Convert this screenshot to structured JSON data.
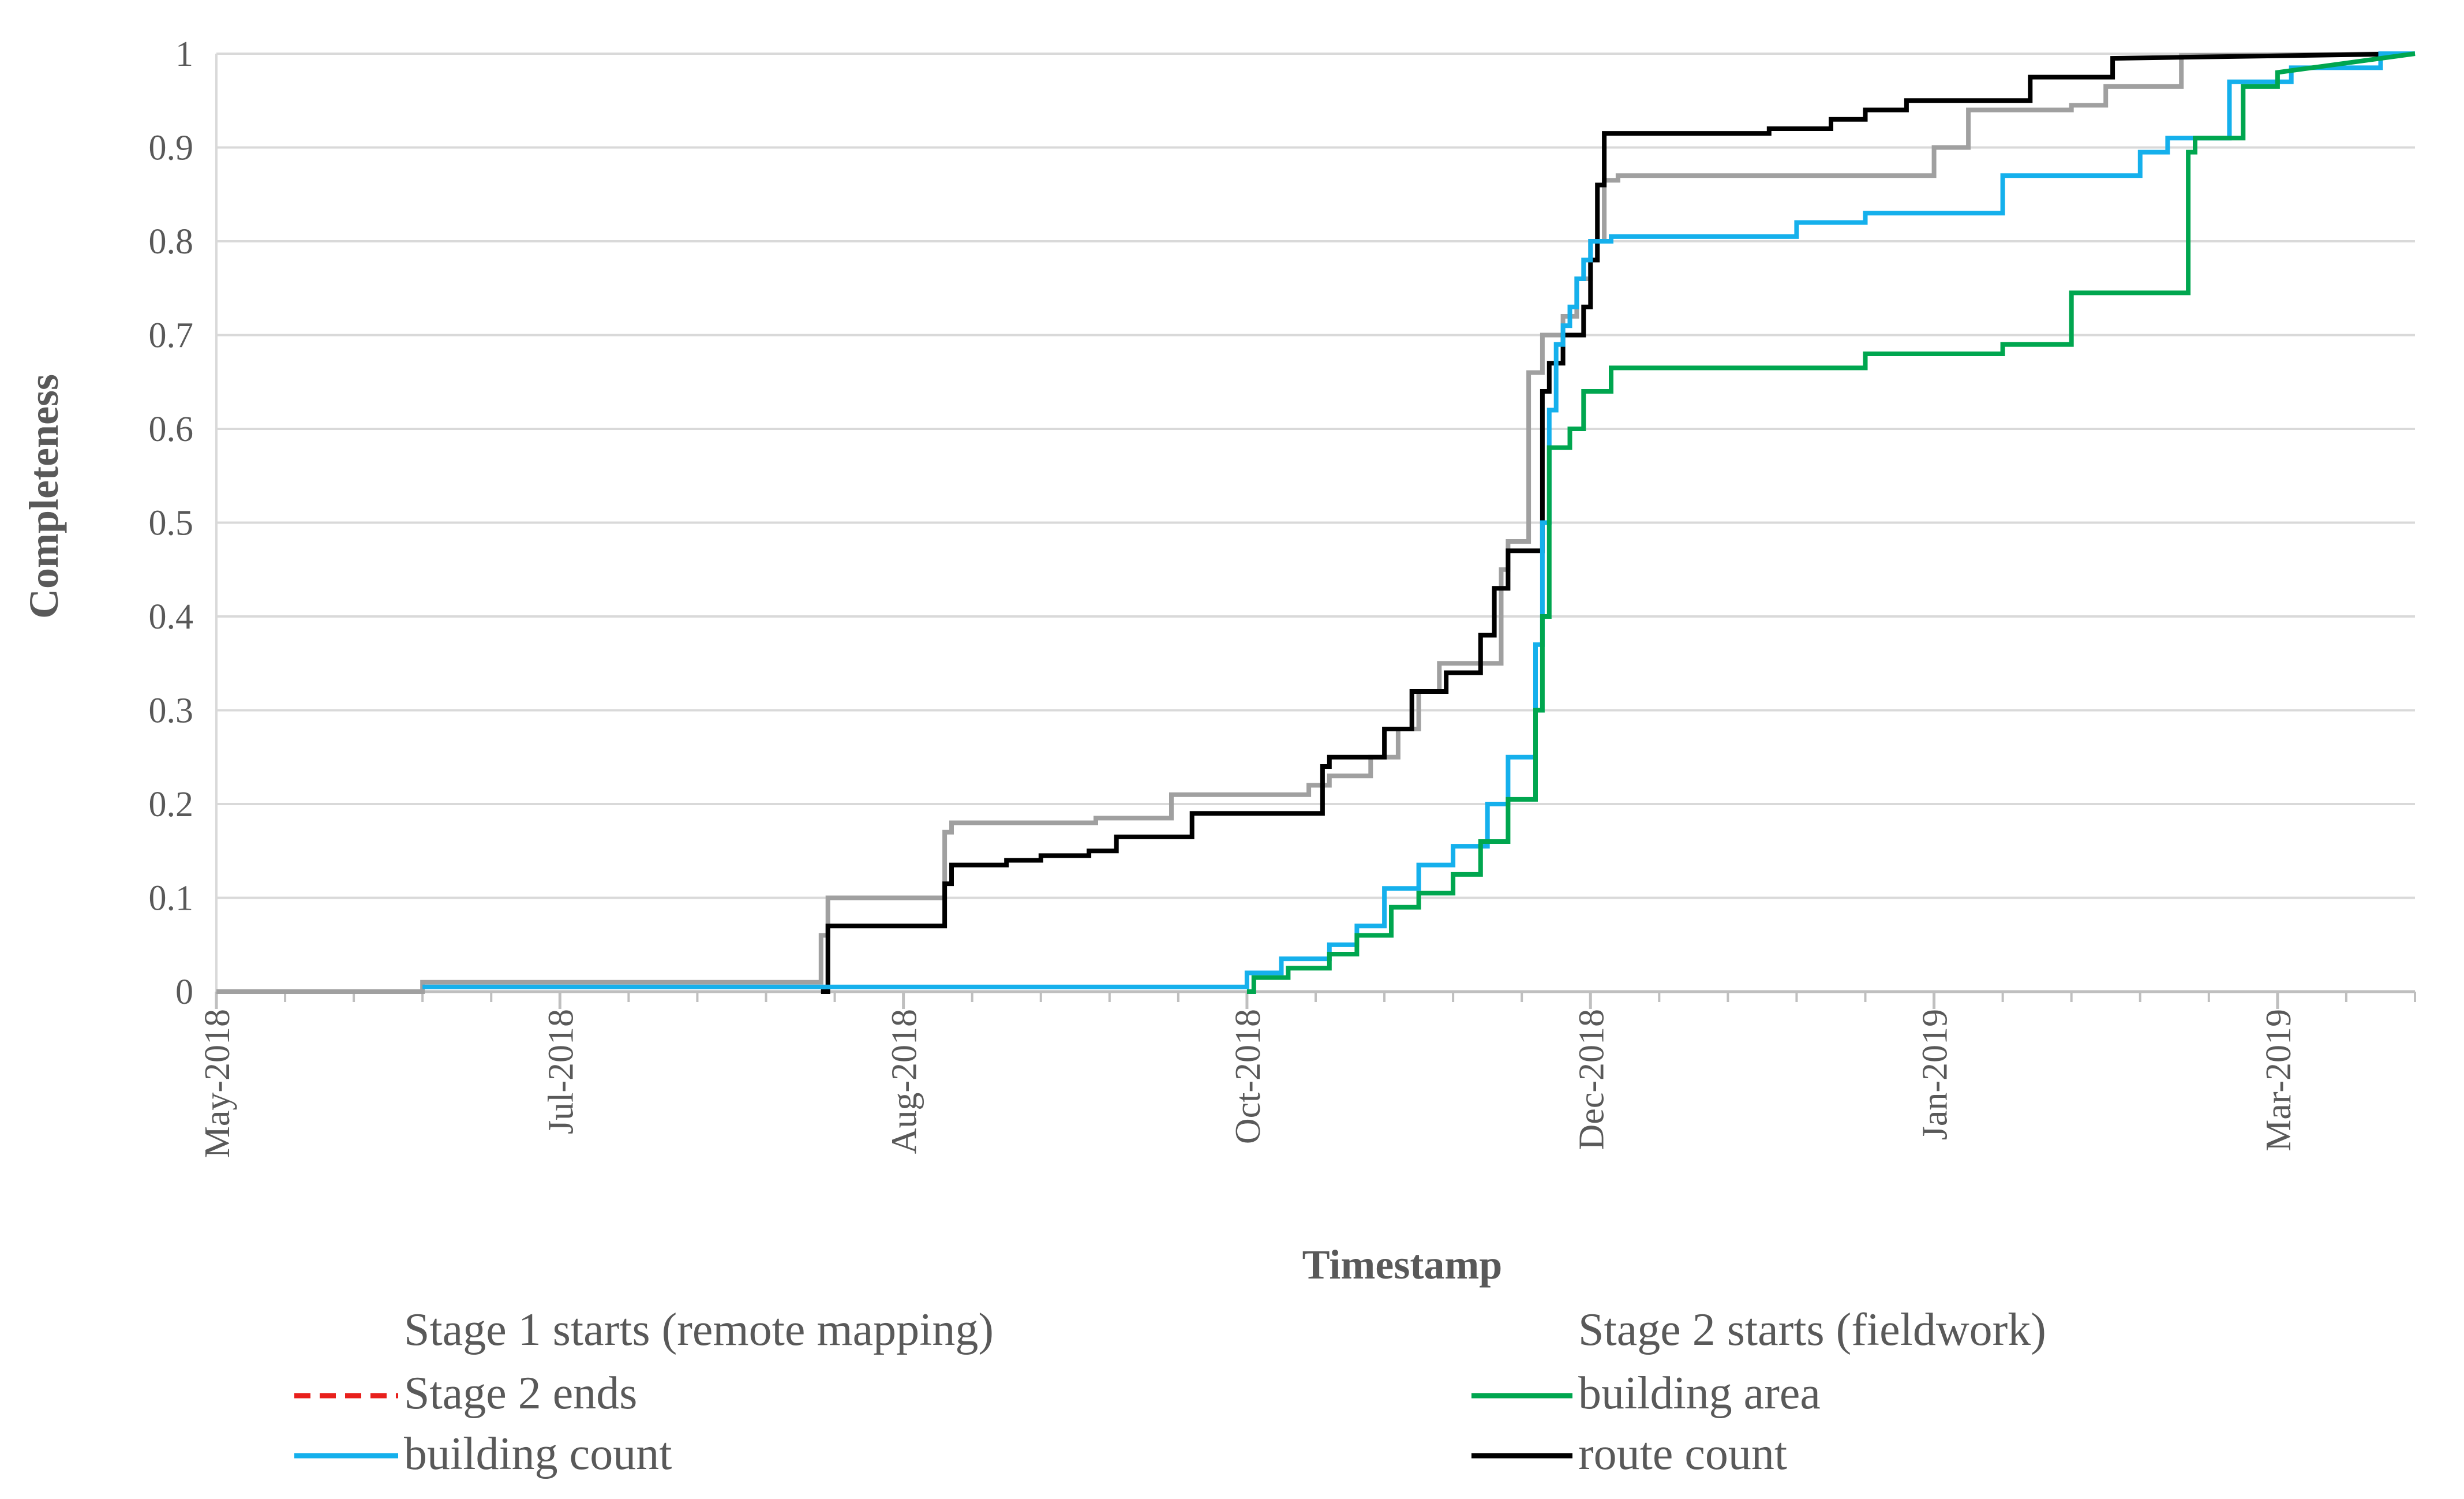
{
  "chart_data": {
    "type": "line",
    "title": "",
    "xlabel": "Timestamp",
    "ylabel": "Completeness",
    "ylim": [
      0,
      1
    ],
    "yticks": [
      "0",
      "0.1",
      "0.2",
      "0.3",
      "0.4",
      "0.5",
      "0.6",
      "0.7",
      "0.8",
      "0.9",
      "1"
    ],
    "x_tick_labels": [
      "May-2018",
      "Jul-2018",
      "Aug-2018",
      "Oct-2018",
      "Dec-2018",
      "Jan-2019",
      "Mar-2019"
    ],
    "x_unit": "days since 1 May 2018",
    "xlim": [
      0,
      320
    ],
    "x_label_days": [
      0,
      50,
      100,
      150,
      200,
      250,
      300
    ],
    "x_minor_days": [
      10,
      20,
      30,
      40,
      60,
      70,
      80,
      90,
      110,
      120,
      130,
      140,
      160,
      170,
      180,
      190,
      210,
      220,
      230,
      240,
      260,
      270,
      280,
      290,
      310,
      320
    ],
    "grid": true,
    "legend_position": "bottom",
    "legend": [
      {
        "label": "Stage 1 starts (remote mapping)",
        "color": "none",
        "style": "none"
      },
      {
        "label": "Stage 2 starts (fieldwork)",
        "color": "none",
        "style": "none"
      },
      {
        "label": "Stage 2 ends",
        "color": "#e8201c",
        "style": "dashed"
      },
      {
        "label": "building area",
        "color": "#00a64f",
        "style": "solid"
      },
      {
        "label": "building count",
        "color": "#15b0ec",
        "style": "solid"
      },
      {
        "label": "route count",
        "color": "#000000",
        "style": "solid"
      }
    ],
    "series": [
      {
        "name": "grey series (unlabeled)",
        "color": "#a0a0a0",
        "x": [
          0,
          30,
          30,
          88,
          88,
          89,
          89,
          106,
          106,
          107,
          107,
          128,
          128,
          139,
          139,
          159,
          159,
          162,
          162,
          168,
          168,
          172,
          172,
          175,
          175,
          178,
          178,
          187,
          187,
          188,
          188,
          191,
          191,
          193,
          193,
          196,
          196,
          198,
          198,
          200,
          200,
          202,
          202,
          204,
          204,
          250,
          250,
          255,
          255,
          270,
          270,
          275,
          275,
          286,
          286,
          320
        ],
        "y": [
          0,
          0,
          0.01,
          0.01,
          0.06,
          0.06,
          0.1,
          0.1,
          0.17,
          0.17,
          0.18,
          0.18,
          0.185,
          0.185,
          0.21,
          0.21,
          0.22,
          0.22,
          0.23,
          0.23,
          0.25,
          0.25,
          0.28,
          0.28,
          0.32,
          0.32,
          0.35,
          0.35,
          0.45,
          0.45,
          0.48,
          0.48,
          0.66,
          0.66,
          0.7,
          0.7,
          0.72,
          0.72,
          0.76,
          0.76,
          0.8,
          0.8,
          0.865,
          0.865,
          0.87,
          0.87,
          0.9,
          0.9,
          0.94,
          0.94,
          0.945,
          0.945,
          0.965,
          0.965,
          0.998,
          1
        ]
      },
      {
        "name": "route count",
        "color": "#000000",
        "x": [
          88,
          89,
          89,
          106,
          106,
          107,
          107,
          115,
          115,
          120,
          120,
          127,
          127,
          131,
          131,
          142,
          142,
          161,
          161,
          162,
          162,
          170,
          170,
          174,
          174,
          179,
          179,
          184,
          184,
          186,
          186,
          188,
          188,
          193,
          193,
          194,
          194,
          196,
          196,
          199,
          199,
          200,
          200,
          201,
          201,
          202,
          202,
          226,
          226,
          235,
          235,
          240,
          240,
          246,
          246,
          264,
          264,
          276,
          276,
          320
        ],
        "y": [
          0,
          0,
          0.07,
          0.07,
          0.115,
          0.115,
          0.135,
          0.135,
          0.14,
          0.14,
          0.145,
          0.145,
          0.15,
          0.15,
          0.165,
          0.165,
          0.19,
          0.19,
          0.24,
          0.24,
          0.25,
          0.25,
          0.28,
          0.28,
          0.32,
          0.32,
          0.34,
          0.34,
          0.38,
          0.38,
          0.43,
          0.43,
          0.47,
          0.47,
          0.64,
          0.64,
          0.67,
          0.67,
          0.7,
          0.7,
          0.73,
          0.73,
          0.78,
          0.78,
          0.86,
          0.86,
          0.915,
          0.915,
          0.92,
          0.92,
          0.93,
          0.93,
          0.94,
          0.94,
          0.95,
          0.95,
          0.975,
          0.975,
          0.995,
          1
        ]
      },
      {
        "name": "building count",
        "color": "#15b0ec",
        "x": [
          30,
          150,
          150,
          155,
          155,
          162,
          162,
          166,
          166,
          170,
          170,
          175,
          175,
          180,
          180,
          185,
          185,
          188,
          188,
          192,
          192,
          193,
          193,
          194,
          194,
          195,
          195,
          196,
          196,
          197,
          197,
          198,
          198,
          199,
          199,
          200,
          200,
          203,
          203,
          230,
          230,
          240,
          240,
          260,
          260,
          280,
          280,
          284,
          284,
          293,
          293,
          302,
          302,
          315,
          315,
          320
        ],
        "y": [
          0.005,
          0.005,
          0.02,
          0.02,
          0.035,
          0.035,
          0.05,
          0.05,
          0.07,
          0.07,
          0.11,
          0.11,
          0.135,
          0.135,
          0.155,
          0.155,
          0.2,
          0.2,
          0.25,
          0.25,
          0.37,
          0.37,
          0.5,
          0.5,
          0.62,
          0.62,
          0.69,
          0.69,
          0.71,
          0.71,
          0.73,
          0.73,
          0.76,
          0.76,
          0.78,
          0.78,
          0.8,
          0.8,
          0.805,
          0.805,
          0.82,
          0.82,
          0.83,
          0.83,
          0.87,
          0.87,
          0.895,
          0.895,
          0.91,
          0.91,
          0.97,
          0.97,
          0.985,
          0.985,
          1,
          1
        ]
      },
      {
        "name": "building area",
        "color": "#00a64f",
        "x": [
          150,
          151,
          151,
          156,
          156,
          162,
          162,
          166,
          166,
          171,
          171,
          175,
          175,
          180,
          180,
          184,
          184,
          188,
          188,
          192,
          192,
          193,
          193,
          194,
          194,
          197,
          197,
          199,
          199,
          203,
          203,
          240,
          240,
          260,
          260,
          270,
          270,
          287,
          287,
          288,
          288,
          295,
          295,
          300,
          300,
          320
        ],
        "y": [
          0,
          0,
          0.015,
          0.015,
          0.025,
          0.025,
          0.04,
          0.04,
          0.06,
          0.06,
          0.09,
          0.09,
          0.105,
          0.105,
          0.125,
          0.125,
          0.16,
          0.16,
          0.205,
          0.205,
          0.3,
          0.3,
          0.4,
          0.4,
          0.58,
          0.58,
          0.6,
          0.6,
          0.64,
          0.64,
          0.665,
          0.665,
          0.68,
          0.68,
          0.69,
          0.69,
          0.745,
          0.745,
          0.895,
          0.895,
          0.91,
          0.91,
          0.965,
          0.965,
          0.98,
          1
        ]
      }
    ]
  }
}
